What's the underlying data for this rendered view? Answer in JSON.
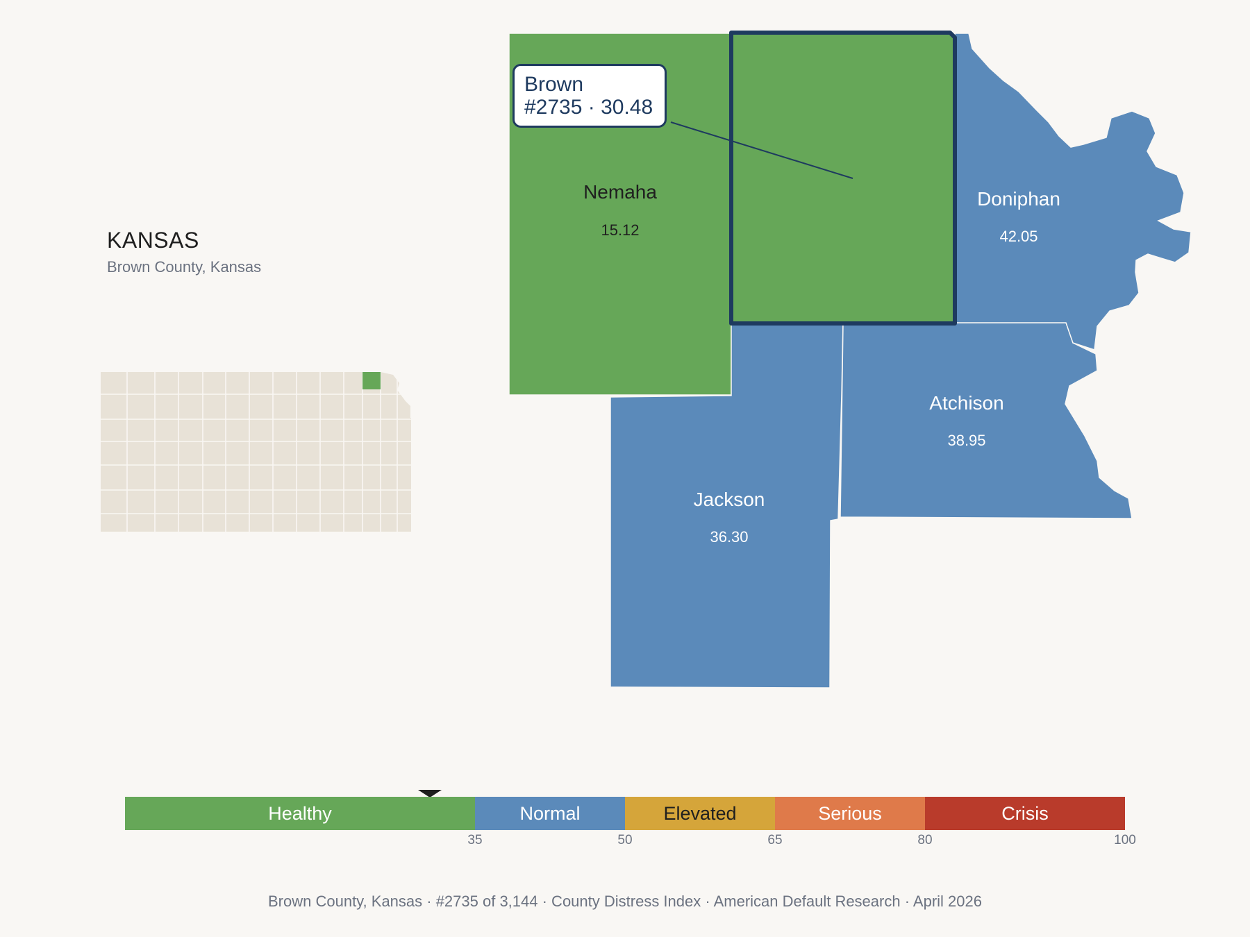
{
  "state": {
    "title": "KANSAS",
    "subtitle": "Brown County, Kansas"
  },
  "colors": {
    "healthy": "#66a758",
    "normal": "#5b8aba",
    "elevated": "#d5a53a",
    "serious": "#df7a4a",
    "crisis": "#b93b2b",
    "highlight_border": "#1e3a5f",
    "inset_fill": "#e8e2d7"
  },
  "counties": [
    {
      "name": "Nemaha",
      "value": "15.12",
      "category": "healthy"
    },
    {
      "name": "Brown",
      "value": "30.48",
      "category": "healthy",
      "selected": true
    },
    {
      "name": "Doniphan",
      "value": "42.05",
      "category": "normal"
    },
    {
      "name": "Atchison",
      "value": "38.95",
      "category": "normal"
    },
    {
      "name": "Jackson",
      "value": "36.30",
      "category": "normal"
    }
  ],
  "tooltip": {
    "line1": "Brown",
    "line2": "#2735 · 30.48"
  },
  "legend": {
    "segments": [
      {
        "label": "Healthy",
        "from": 0,
        "to": 35,
        "color": "#66a758",
        "text_color": "#ffffff"
      },
      {
        "label": "Normal",
        "from": 35,
        "to": 50,
        "color": "#5b8aba",
        "text_color": "#ffffff"
      },
      {
        "label": "Elevated",
        "from": 50,
        "to": 65,
        "color": "#d5a53a",
        "text_color": "#1f1f1f"
      },
      {
        "label": "Serious",
        "from": 65,
        "to": 80,
        "color": "#df7a4a",
        "text_color": "#ffffff"
      },
      {
        "label": "Crisis",
        "from": 80,
        "to": 100,
        "color": "#b93b2b",
        "text_color": "#ffffff"
      }
    ],
    "ticks": [
      "35",
      "50",
      "65",
      "80",
      "100"
    ],
    "marker_value": 30.48
  },
  "footer": "Brown County, Kansas  ·  #2735 of 3,144  ·  County Distress Index  ·  American Default Research  ·  April 2026"
}
